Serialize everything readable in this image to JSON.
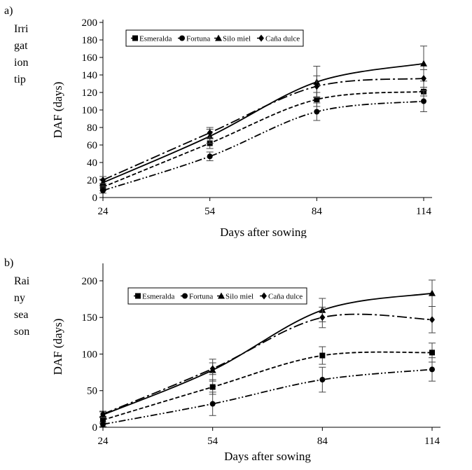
{
  "chart_data": [
    {
      "type": "line",
      "panel_letter": "a)",
      "panel_caption_lines": [
        "Irri",
        "gat",
        "ion",
        "tip"
      ],
      "xlabel": "Days after sowing",
      "ylabel": "DAF  (days)",
      "x_ticks": [
        24,
        54,
        84,
        114
      ],
      "y_ticks": [
        0,
        20,
        40,
        60,
        80,
        100,
        120,
        140,
        160,
        180,
        200
      ],
      "xlim": [
        24,
        114
      ],
      "ylim": [
        0,
        200
      ],
      "legend_position": "top",
      "grid": false,
      "series": [
        {
          "name": "Esmeralda",
          "marker": "square",
          "dash": "6 3",
          "x": [
            24,
            54,
            84,
            114
          ],
          "y": [
            12,
            62,
            112,
            121
          ],
          "err": [
            4,
            6,
            8,
            5
          ]
        },
        {
          "name": "Fortuna",
          "marker": "circle",
          "dash": "10 3 2 3 2 3",
          "x": [
            24,
            54,
            84,
            114
          ],
          "y": [
            8,
            47,
            98,
            110
          ],
          "err": [
            3,
            5,
            10,
            12
          ]
        },
        {
          "name": "Silo miel",
          "marker": "triangle",
          "dash": "",
          "x": [
            24,
            54,
            84,
            114
          ],
          "y": [
            17,
            70,
            132,
            153
          ],
          "err": [
            4,
            8,
            18,
            20
          ]
        },
        {
          "name": "Caña dulce",
          "marker": "diamond",
          "dash": "14 4 3 4",
          "x": [
            24,
            54,
            84,
            114
          ],
          "y": [
            20,
            74,
            127,
            136
          ],
          "err": [
            4,
            6,
            12,
            10
          ]
        }
      ]
    },
    {
      "type": "line",
      "panel_letter": "b)",
      "panel_caption_lines": [
        "Rai",
        "ny",
        "sea",
        "son"
      ],
      "xlabel": "Days after sowing",
      "ylabel": "DAF  (days)",
      "x_ticks": [
        24,
        54,
        84,
        114
      ],
      "y_ticks": [
        0,
        50,
        100,
        150,
        200
      ],
      "xlim": [
        24,
        114
      ],
      "ylim": [
        0,
        220
      ],
      "legend_position": "top",
      "grid": false,
      "series": [
        {
          "name": "Esmeralda",
          "marker": "square",
          "dash": "6 3",
          "x": [
            24,
            54,
            84,
            114
          ],
          "y": [
            10,
            55,
            98,
            102
          ],
          "err": [
            5,
            10,
            12,
            13
          ]
        },
        {
          "name": "Fortuna",
          "marker": "circle",
          "dash": "10 3 2 3 2 3",
          "x": [
            24,
            54,
            84,
            114
          ],
          "y": [
            4,
            32,
            65,
            79
          ],
          "err": [
            3,
            16,
            17,
            16
          ]
        },
        {
          "name": "Silo miel",
          "marker": "triangle",
          "dash": "",
          "x": [
            24,
            54,
            84,
            114
          ],
          "y": [
            17,
            78,
            160,
            183
          ],
          "err": [
            4,
            15,
            16,
            18
          ]
        },
        {
          "name": "Caña dulce",
          "marker": "diamond",
          "dash": "14 4 3 4",
          "x": [
            24,
            54,
            84,
            114
          ],
          "y": [
            18,
            80,
            150,
            147
          ],
          "err": [
            4,
            8,
            14,
            18
          ]
        }
      ]
    }
  ]
}
